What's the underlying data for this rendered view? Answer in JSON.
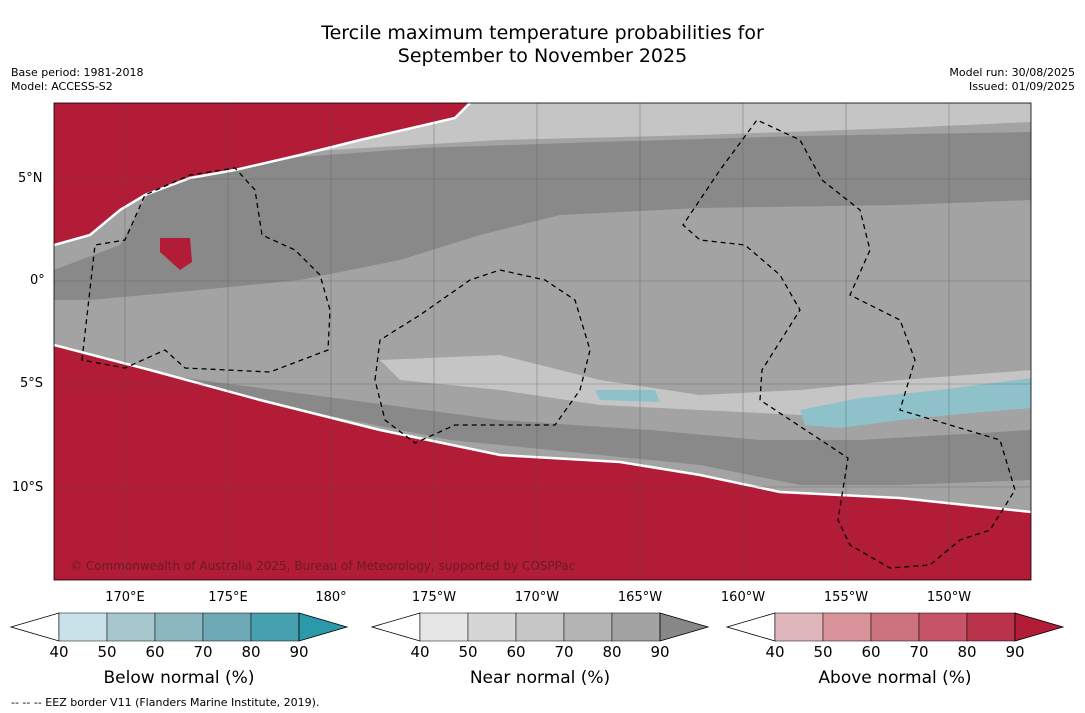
{
  "title": {
    "line1": "Tercile maximum temperature probabilities for",
    "line2": "September to November 2025"
  },
  "meta_left": {
    "base_period": "Base period: 1981-2018",
    "model": "Model: ACCESS-S2"
  },
  "meta_right": {
    "model_run": "Model run: 30/08/2025",
    "issued": "Issued: 01/09/2025"
  },
  "map": {
    "lat_labels": [
      "5°N",
      "0°",
      "5°S",
      "10°S"
    ],
    "lon_labels": [
      "170°E",
      "175°E",
      "180°",
      "175°W",
      "170°W",
      "165°W",
      "160°W",
      "155°W",
      "150°W"
    ],
    "copyright": "© Commonwealth of Australia 2025, Bureau of Meteorology, supported by COSPPac",
    "colors": {
      "above_strong": "#b21c37",
      "near_dark": "#898989",
      "near_mid": "#a3a3a3",
      "near_light": "#c5c5c5",
      "below": "#8fc1cb"
    }
  },
  "colorbars": [
    {
      "name": "below",
      "label": "Below normal (%)",
      "ticks": [
        "40",
        "50",
        "60",
        "70",
        "80",
        "90"
      ],
      "colors": [
        "#c9e2e9",
        "#a6c7cd",
        "#8ab7c0",
        "#6eaab6",
        "#47a0b0",
        "#2a9aab"
      ]
    },
    {
      "name": "near",
      "label": "Near normal (%)",
      "ticks": [
        "40",
        "50",
        "60",
        "70",
        "80",
        "90"
      ],
      "colors": [
        "#e6e6e6",
        "#d6d6d6",
        "#c6c6c6",
        "#b4b4b4",
        "#a3a3a3",
        "#878787"
      ]
    },
    {
      "name": "above",
      "label": "Above normal (%)",
      "ticks": [
        "40",
        "50",
        "60",
        "70",
        "80",
        "90"
      ],
      "colors": [
        "#e0b7bd",
        "#d8939b",
        "#cc737f",
        "#c65468",
        "#b9334b",
        "#b21c37"
      ]
    }
  ],
  "footnote": "-- -- -- EEZ border V11 (Flanders Marine Institute, 2019)."
}
